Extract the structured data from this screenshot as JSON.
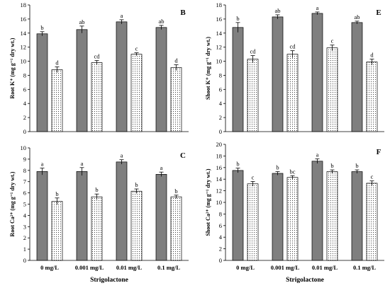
{
  "chart_data": [
    {
      "type": "bar",
      "panel_label": "B",
      "ylabel": "Root K⁺ (mg g⁻¹ dry wt.)",
      "xlabel": "",
      "ylim": [
        0,
        18
      ],
      "ytick_step": 2,
      "categories": [
        "",
        "",
        "",
        ""
      ],
      "series": [
        {
          "values": [
            13.9,
            14.5,
            15.6,
            14.8
          ],
          "errors": [
            0.3,
            0.5,
            0.3,
            0.3
          ],
          "letters": [
            "b",
            "ab",
            "a",
            "ab"
          ],
          "fill": "solid"
        },
        {
          "values": [
            8.8,
            9.8,
            11.0,
            9.1
          ],
          "errors": [
            0.4,
            0.3,
            0.2,
            0.4
          ],
          "letters": [
            "d",
            "cd",
            "c",
            "d"
          ],
          "fill": "dotted"
        }
      ]
    },
    {
      "type": "bar",
      "panel_label": "E",
      "ylabel": "Shoot K⁺ (mg g⁻¹ dry wt.)",
      "xlabel": "",
      "ylim": [
        0,
        18
      ],
      "ytick_step": 2,
      "categories": [
        "",
        "",
        "",
        ""
      ],
      "series": [
        {
          "values": [
            14.8,
            16.3,
            16.8,
            15.5
          ],
          "errors": [
            0.7,
            0.3,
            0.2,
            0.2
          ],
          "letters": [
            "b",
            "ab",
            "a",
            "ab"
          ],
          "fill": "solid"
        },
        {
          "values": [
            10.3,
            11.0,
            11.9,
            9.9
          ],
          "errors": [
            0.5,
            0.5,
            0.4,
            0.4
          ],
          "letters": [
            "cd",
            "cd",
            "c",
            "d"
          ],
          "fill": "dotted"
        }
      ]
    },
    {
      "type": "bar",
      "panel_label": "C",
      "ylabel": "Root Ca²⁺ (mg g⁻¹ dry wt.)",
      "xlabel": "Strigolactone",
      "ylim": [
        0,
        10
      ],
      "ytick_step": 1,
      "categories": [
        "0 mg/L",
        "0.001 mg/L",
        "0.01 mg/L",
        "0.1 mg/L"
      ],
      "series": [
        {
          "values": [
            7.9,
            7.9,
            8.75,
            7.65
          ],
          "errors": [
            0.3,
            0.35,
            0.2,
            0.2
          ],
          "letters": [
            "a",
            "a",
            "a",
            "a"
          ],
          "fill": "solid"
        },
        {
          "values": [
            5.25,
            5.65,
            6.15,
            5.65
          ],
          "errors": [
            0.3,
            0.25,
            0.2,
            0.15
          ],
          "letters": [
            "b",
            "b",
            "b",
            "b"
          ],
          "fill": "dotted"
        }
      ]
    },
    {
      "type": "bar",
      "panel_label": "F",
      "ylabel": "Shoot Ca²⁺ (mg g⁻¹ dry wt.)",
      "xlabel": "Strigolactone",
      "ylim": [
        0,
        20
      ],
      "ytick_step": 2,
      "categories": [
        "0 mg/L",
        "0.001 mg/L",
        "0.01 mg/L",
        "0.1 mg/L"
      ],
      "series": [
        {
          "values": [
            15.5,
            15.0,
            17.1,
            15.3
          ],
          "errors": [
            0.4,
            0.3,
            0.4,
            0.3
          ],
          "letters": [
            "b",
            "b",
            "a",
            "b"
          ],
          "fill": "solid"
        },
        {
          "values": [
            13.2,
            14.3,
            15.3,
            13.3
          ],
          "errors": [
            0.4,
            0.3,
            0.3,
            0.4
          ],
          "letters": [
            "c",
            "bc",
            "b",
            "c"
          ],
          "fill": "dotted"
        }
      ]
    }
  ],
  "colors": {
    "solid_bar": "#7f7f7f",
    "axis": "#000000"
  }
}
